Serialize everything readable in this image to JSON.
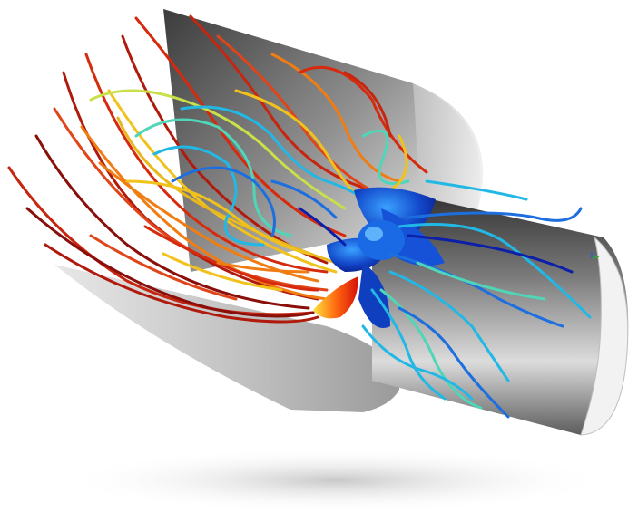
{
  "scene": {
    "subject": "cfd-propeller-streamlines",
    "colormap": [
      "#0b1fa8",
      "#1d6fe0",
      "#22b8e6",
      "#4fd6b8",
      "#c9e04a",
      "#f2c21c",
      "#f07d14",
      "#d62a0e",
      "#8a0f0a"
    ],
    "shell_color": "#9a9a9a",
    "background": "#ffffff"
  }
}
